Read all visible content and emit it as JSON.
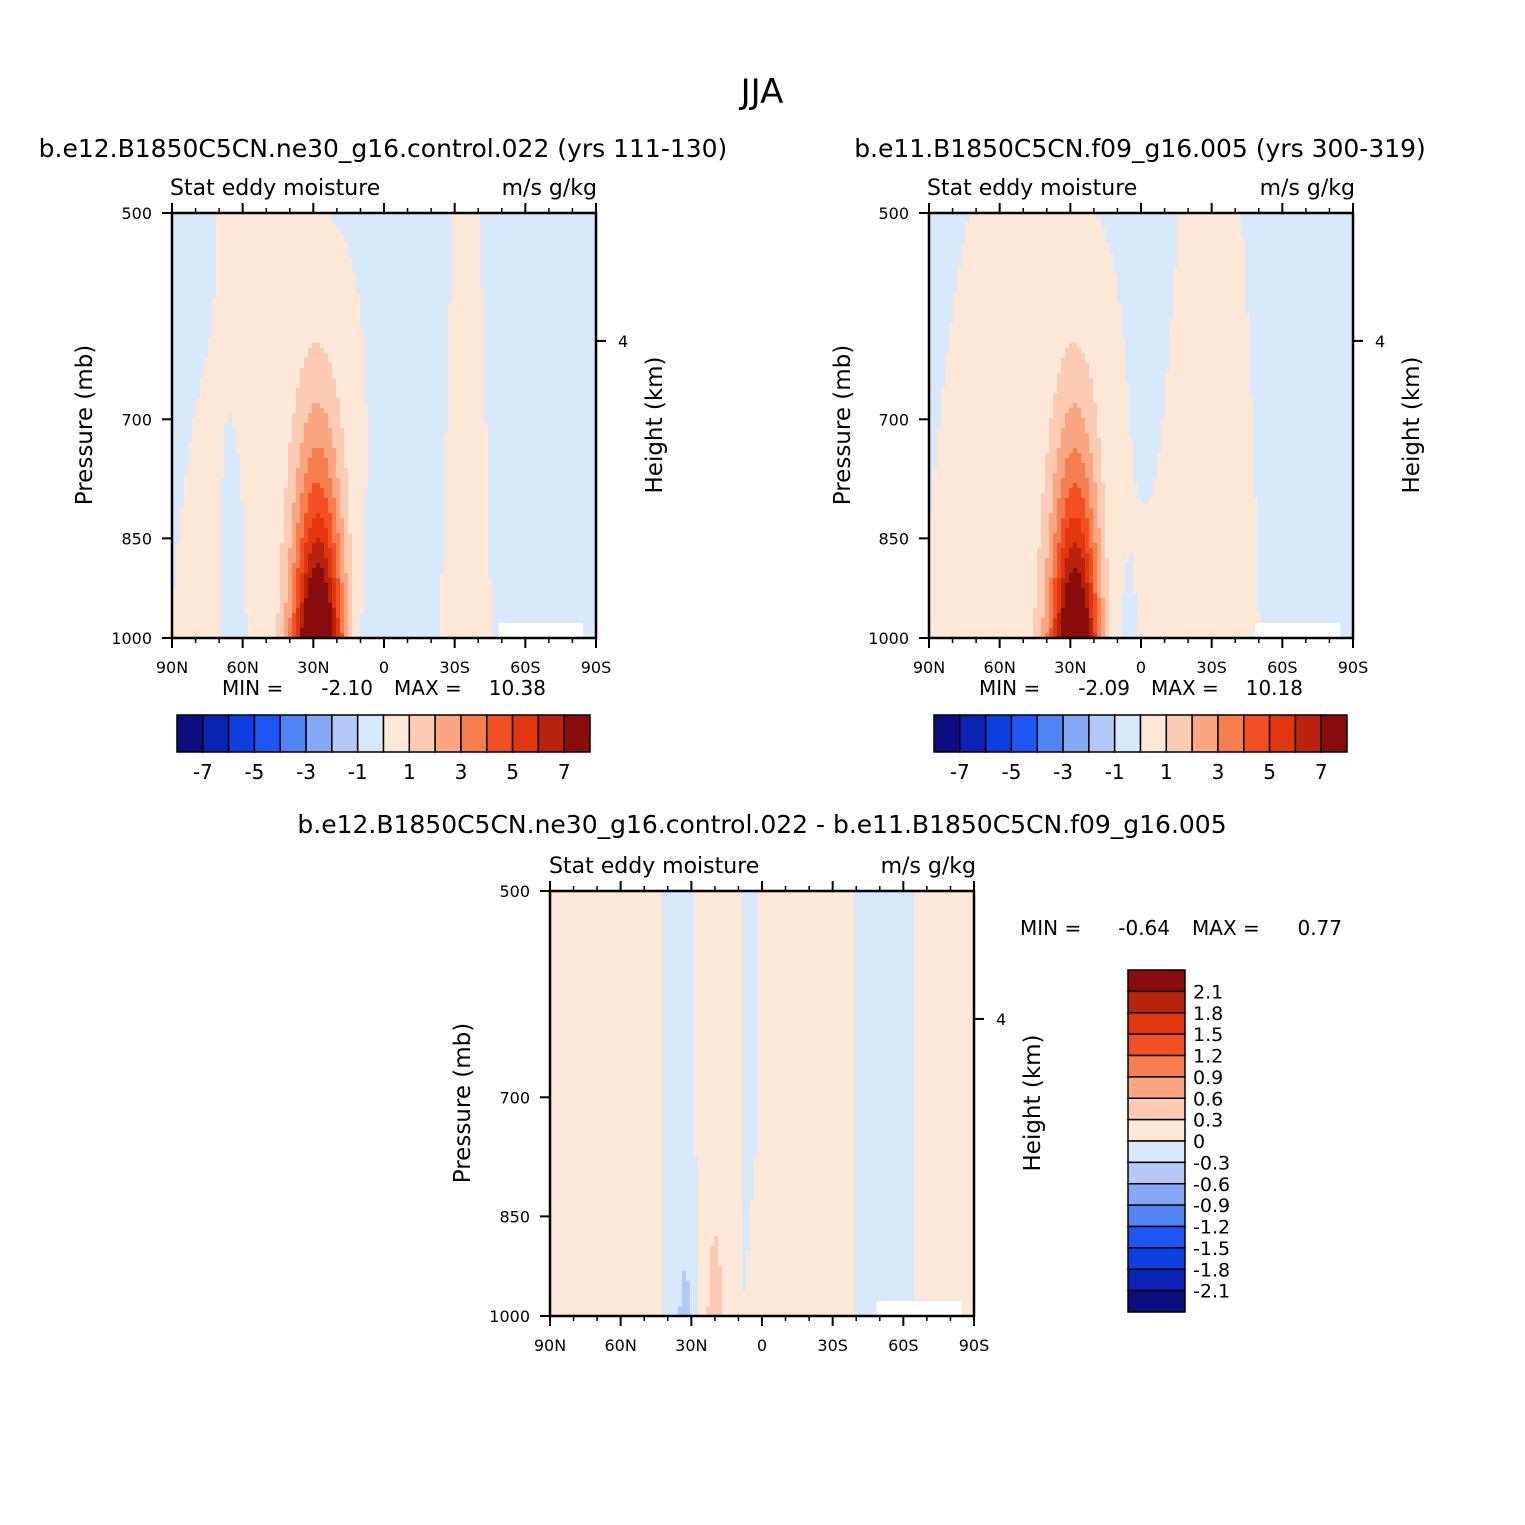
{
  "figure_title": "JJA",
  "palette": {
    "abs": [
      "#0c0e80",
      "#0b23b4",
      "#0c3ee0",
      "#1d56f5",
      "#4f84f2",
      "#85a8f4",
      "#b3c9f7",
      "#d8e9fb",
      "#fde8d7",
      "#fdcbb3",
      "#fba680",
      "#f67d4d",
      "#f25024",
      "#e2360f",
      "#b9230d",
      "#8b0c0c"
    ],
    "diff": [
      "#0c0e80",
      "#0b23b4",
      "#0c3ee0",
      "#1d56f5",
      "#4f84f2",
      "#85a8f4",
      "#b3c9f7",
      "#d8e9fb",
      "#fde8d7",
      "#fdcbb3",
      "#fba680",
      "#f67d4d",
      "#f25024",
      "#e2360f",
      "#b9230d",
      "#8b0c0c"
    ]
  },
  "chart_data": [
    {
      "type": "heatmap",
      "title": "b.e12.B1850C5CN.ne30_g16.control.022 (yrs 111-130)",
      "left_string": "Stat eddy moisture",
      "right_string": "m/s g/kg",
      "xlabel": "",
      "ylabel": "Pressure (mb)",
      "ylabel_right": "Height (km)",
      "x_ticks": [
        "90N",
        "60N",
        "30N",
        "0",
        "30S",
        "60S",
        "90S"
      ],
      "y_ticks": [
        "500",
        "700",
        "850",
        "1000"
      ],
      "y_ticks_right": [
        "4"
      ],
      "stats": {
        "min_label": "MIN =",
        "min": "-2.10",
        "max_label": "MAX =",
        "max": "10.38"
      },
      "colorbar": {
        "orientation": "horizontal",
        "levels": [
          -7,
          -6,
          -5,
          -4,
          -3,
          -2,
          -1,
          0,
          1,
          2,
          3,
          4,
          5,
          6,
          7
        ],
        "labels": [
          "-7",
          "-5",
          "-3",
          "-1",
          "1",
          "3",
          "5",
          "7"
        ]
      },
      "max_value": 10.38,
      "min_value": -2.1
    },
    {
      "type": "heatmap",
      "title": "b.e11.B1850C5CN.f09_g16.005 (yrs 300-319)",
      "left_string": "Stat eddy moisture",
      "right_string": "m/s g/kg",
      "xlabel": "",
      "ylabel": "Pressure (mb)",
      "ylabel_right": "Height (km)",
      "x_ticks": [
        "90N",
        "60N",
        "30N",
        "0",
        "30S",
        "60S",
        "90S"
      ],
      "y_ticks": [
        "500",
        "700",
        "850",
        "1000"
      ],
      "y_ticks_right": [
        "4"
      ],
      "stats": {
        "min_label": "MIN =",
        "min": "-2.09",
        "max_label": "MAX =",
        "max": "10.18"
      },
      "colorbar": {
        "orientation": "horizontal",
        "levels": [
          -7,
          -6,
          -5,
          -4,
          -3,
          -2,
          -1,
          0,
          1,
          2,
          3,
          4,
          5,
          6,
          7
        ],
        "labels": [
          "-7",
          "-5",
          "-3",
          "-1",
          "1",
          "3",
          "5",
          "7"
        ]
      },
      "max_value": 10.18,
      "min_value": -2.09
    },
    {
      "type": "heatmap",
      "title": "b.e12.B1850C5CN.ne30_g16.control.022 - b.e11.B1850C5CN.f09_g16.005",
      "left_string": "Stat eddy moisture",
      "right_string": "m/s g/kg",
      "xlabel": "",
      "ylabel": "Pressure (mb)",
      "ylabel_right": "Height (km)",
      "x_ticks": [
        "90N",
        "60N",
        "30N",
        "0",
        "30S",
        "60S",
        "90S"
      ],
      "y_ticks": [
        "500",
        "700",
        "850",
        "1000"
      ],
      "y_ticks_right": [
        "4"
      ],
      "stats": {
        "min_label": "MIN =",
        "min": "-0.64",
        "max_label": "MAX =",
        "max": "0.77"
      },
      "colorbar": {
        "orientation": "vertical",
        "levels": [
          2.1,
          1.8,
          1.5,
          1.2,
          0.9,
          0.6,
          0.3,
          0,
          -0.3,
          -0.6,
          -0.9,
          -1.2,
          -1.5,
          -1.8,
          -2.1
        ],
        "labels": [
          "2.1",
          "1.8",
          "1.5",
          "1.2",
          "0.9",
          "0.6",
          "0.3",
          "0",
          "-0.3",
          "-0.6",
          "-0.9",
          "-1.2",
          "-1.5",
          "-1.8",
          "-2.1"
        ]
      },
      "max_value": 0.77,
      "min_value": -0.64
    }
  ]
}
